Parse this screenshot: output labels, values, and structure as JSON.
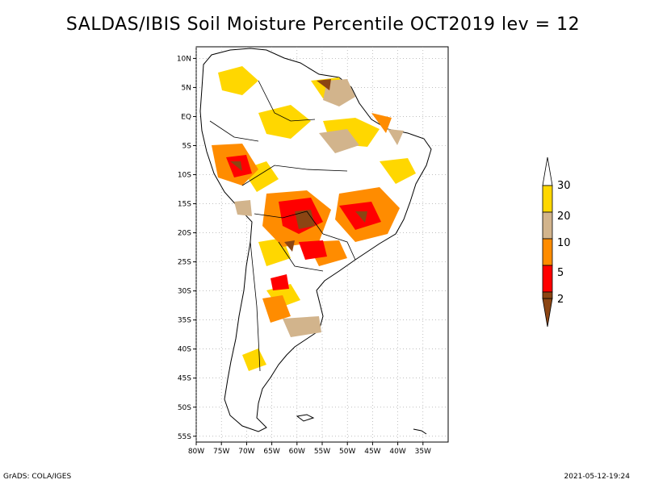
{
  "title": "SALDAS/IBIS Soil Moisture Percentile OCT2019 lev = 12",
  "map": {
    "lon_range": [
      -80,
      -30
    ],
    "lat_range": [
      -56,
      12
    ],
    "lat_ticks": [
      {
        "value": 10,
        "label": "10N"
      },
      {
        "value": 5,
        "label": "5N"
      },
      {
        "value": 0,
        "label": "EQ"
      },
      {
        "value": -5,
        "label": "5S"
      },
      {
        "value": -10,
        "label": "10S"
      },
      {
        "value": -15,
        "label": "15S"
      },
      {
        "value": -20,
        "label": "20S"
      },
      {
        "value": -25,
        "label": "25S"
      },
      {
        "value": -30,
        "label": "30S"
      },
      {
        "value": -35,
        "label": "35S"
      },
      {
        "value": -40,
        "label": "40S"
      },
      {
        "value": -45,
        "label": "45S"
      },
      {
        "value": -50,
        "label": "50S"
      },
      {
        "value": -55,
        "label": "55S"
      }
    ],
    "lon_ticks": [
      {
        "value": -80,
        "label": "80W"
      },
      {
        "value": -75,
        "label": "75W"
      },
      {
        "value": -70,
        "label": "70W"
      },
      {
        "value": -65,
        "label": "65W"
      },
      {
        "value": -60,
        "label": "60W"
      },
      {
        "value": -55,
        "label": "55W"
      },
      {
        "value": -50,
        "label": "50W"
      },
      {
        "value": -45,
        "label": "45W"
      },
      {
        "value": -40,
        "label": "40W"
      },
      {
        "value": -35,
        "label": "35W"
      }
    ],
    "colors": {
      "lt2": "#8b4513",
      "2to5": "#ff0000",
      "5to10": "#ff8c00",
      "10to20": "#d2b48c",
      "20to30": "#ffd700",
      "gt30": "#ffffff"
    }
  },
  "colorbar": {
    "labels": [
      "2",
      "5",
      "10",
      "20",
      "30"
    ]
  },
  "footer": {
    "left": "GrADS: COLA/IGES",
    "right": "2021-05-12-19:24"
  }
}
